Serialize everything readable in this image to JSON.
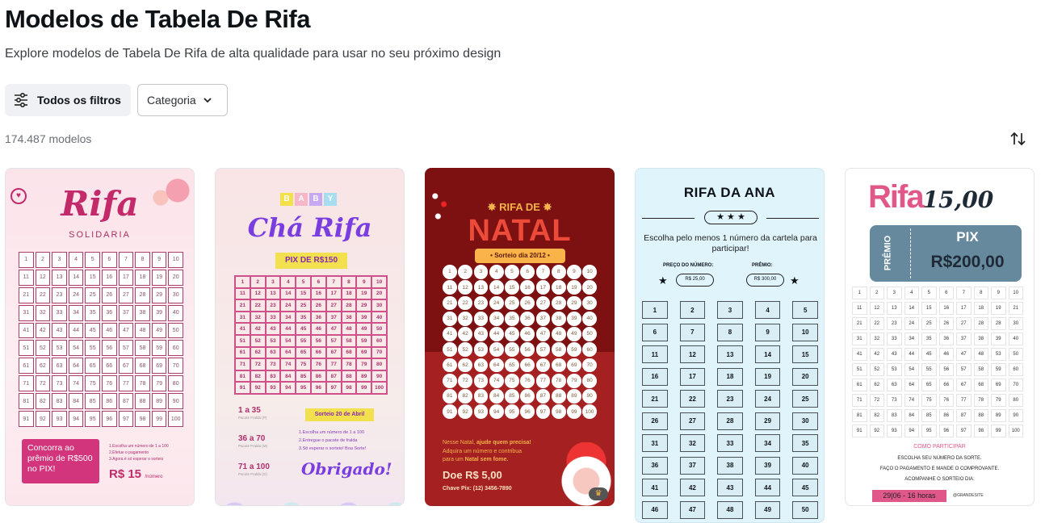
{
  "header": {
    "title": "Modelos de Tabela De Rifa",
    "subtitle": "Explore modelos de Tabela De Rifa de alta qualidade para usar no seu próximo design"
  },
  "filters": {
    "all_filters_label": "Todos os filtros",
    "category_label": "Categoria",
    "filters_icon": "sliders-icon",
    "category_icon": "chevron-down-icon"
  },
  "results": {
    "count": "174.487 modelos",
    "sort_icon": "sort-arrows-icon"
  },
  "colors": {
    "card1_pink": "#d3357c",
    "card3_dark": "#7d1010",
    "card3_red": "#a52121",
    "card4_bg": "#e0f4fb",
    "card5_pink": "#e0588a",
    "card5_ticket": "#66899e"
  },
  "templates": [
    {
      "title": "Rifa",
      "subtitle": "SOLIDARIA",
      "prize_box": "Concorra ao prêmio de R$500 no PIX!",
      "steps": [
        "1.Escolha um número de 1 a 100",
        "2.Efetue o pagamento",
        "3.Agora é só esperar o sorteio"
      ],
      "price": "R$ 15",
      "price_unit": "/número",
      "numbers": [
        1,
        2,
        3,
        4,
        5,
        6,
        7,
        8,
        9,
        10,
        11,
        12,
        13,
        14,
        15,
        16,
        17,
        18,
        19,
        20,
        21,
        22,
        23,
        24,
        25,
        26,
        27,
        28,
        29,
        30,
        31,
        32,
        33,
        34,
        35,
        36,
        37,
        38,
        39,
        40,
        41,
        42,
        43,
        44,
        45,
        46,
        47,
        48,
        49,
        50,
        51,
        52,
        53,
        54,
        55,
        56,
        57,
        58,
        59,
        60,
        61,
        62,
        63,
        64,
        65,
        66,
        67,
        68,
        69,
        70,
        71,
        72,
        73,
        74,
        75,
        76,
        77,
        78,
        79,
        80,
        81,
        82,
        83,
        84,
        85,
        86,
        87,
        88,
        89,
        90,
        91,
        92,
        93,
        94,
        95,
        96,
        97,
        98,
        99,
        100
      ]
    },
    {
      "blocks": [
        "B",
        "A",
        "B",
        "Y"
      ],
      "title": "Chá Rifa",
      "pix": "PIX DE R$150",
      "ranges": [
        {
          "range": "1 a 35",
          "label": "Pacote Fralda (P)"
        },
        {
          "range": "36 a 70",
          "label": "Pacote Fralda (M)"
        },
        {
          "range": "71 a 100",
          "label": "Pacote Fralda (G)"
        }
      ],
      "draw": "Sorteio 20 de Abril",
      "steps": [
        "1.Escolha um número de 1 a 100",
        "2.Entregue o pacote de fralda",
        "3.Só esperar o sorteio! Boa Sorte!"
      ],
      "thanks": "Obrigado!",
      "numbers": [
        1,
        2,
        3,
        4,
        5,
        6,
        7,
        8,
        9,
        10,
        11,
        12,
        13,
        14,
        15,
        16,
        17,
        18,
        19,
        20,
        21,
        22,
        23,
        24,
        25,
        26,
        27,
        28,
        29,
        30,
        31,
        32,
        33,
        34,
        35,
        36,
        37,
        38,
        39,
        40,
        41,
        42,
        43,
        44,
        45,
        46,
        47,
        48,
        49,
        50,
        51,
        52,
        53,
        54,
        55,
        56,
        57,
        58,
        59,
        60,
        61,
        62,
        63,
        64,
        65,
        66,
        67,
        68,
        69,
        70,
        71,
        72,
        73,
        74,
        75,
        76,
        77,
        78,
        79,
        80,
        81,
        82,
        83,
        84,
        85,
        86,
        87,
        88,
        89,
        90,
        91,
        92,
        93,
        94,
        95,
        96,
        97,
        98,
        99,
        100
      ]
    },
    {
      "kicker": "RIFA DE",
      "title": "NATAL",
      "draw": "Sorteio dia 20/12",
      "message_1": "Nesse Natal, ",
      "message_1b": "ajude quem precisa!",
      "message_2": "Adquira um número e contribua",
      "message_3": "para um ",
      "message_3b": "Natal sem fome.",
      "donation": "Doe R$ 5,00",
      "pix_key": "Chave Pix: (12) 3456-7890",
      "premium_icon": "crown-icon",
      "numbers": [
        1,
        2,
        3,
        4,
        5,
        6,
        7,
        8,
        9,
        10,
        11,
        12,
        13,
        14,
        15,
        16,
        17,
        18,
        19,
        20,
        21,
        22,
        23,
        24,
        25,
        26,
        27,
        28,
        29,
        30,
        31,
        32,
        33,
        34,
        35,
        36,
        37,
        38,
        39,
        40,
        41,
        42,
        43,
        44,
        45,
        46,
        47,
        48,
        49,
        50,
        51,
        52,
        53,
        54,
        55,
        56,
        57,
        58,
        59,
        60,
        61,
        62,
        63,
        64,
        65,
        66,
        67,
        68,
        69,
        70,
        71,
        72,
        73,
        74,
        75,
        76,
        77,
        78,
        79,
        80,
        81,
        82,
        83,
        84,
        85,
        86,
        87,
        88,
        89,
        90,
        91,
        92,
        93,
        94,
        95,
        96,
        97,
        98,
        99,
        100
      ]
    },
    {
      "title": "RIFA DA ANA",
      "stars": "★ ★ ★",
      "instruction": "Escolha pelo menos 1 número da cartela para participar!",
      "price_label": "PREÇO DO NÚMERO:",
      "price": "R$ 25,00",
      "prize_label": "PRÊMIO:",
      "prize": "R$ 300,00",
      "numbers": [
        1,
        2,
        3,
        4,
        5,
        6,
        7,
        8,
        9,
        10,
        11,
        12,
        13,
        14,
        15,
        16,
        17,
        18,
        19,
        20,
        21,
        22,
        23,
        24,
        25,
        26,
        27,
        28,
        29,
        30,
        31,
        32,
        33,
        34,
        35,
        36,
        37,
        38,
        39,
        40,
        41,
        42,
        43,
        44,
        45,
        46,
        47,
        48,
        49,
        50
      ]
    },
    {
      "title": "Rifa",
      "price": "15,00",
      "ticket_side": "PRÊMIO",
      "ticket_top": "PIX",
      "ticket_value": "R$200,00",
      "how_title": "COMO PARTICIPAR",
      "how_lines": [
        "ESCOLHA SEU NÚMERO DA SORTE.",
        "FAÇO O PAGAMENTO E MANDE O COMPROVANTE.",
        "ACOMPANHE O SORTEIO DIA:"
      ],
      "date": "29|06 - 16 horas",
      "handle": "@GRANDESITE",
      "numbers": [
        1,
        2,
        3,
        4,
        5,
        6,
        7,
        8,
        9,
        10,
        11,
        12,
        13,
        14,
        15,
        16,
        17,
        18,
        19,
        21,
        21,
        22,
        23,
        24,
        25,
        26,
        27,
        28,
        28,
        30,
        31,
        32,
        33,
        34,
        35,
        36,
        37,
        38,
        39,
        40,
        41,
        42,
        43,
        44,
        45,
        46,
        47,
        48,
        53,
        50,
        51,
        52,
        53,
        54,
        55,
        56,
        57,
        58,
        59,
        60,
        61,
        62,
        63,
        64,
        65,
        66,
        67,
        68,
        69,
        70,
        71,
        72,
        73,
        74,
        75,
        76,
        77,
        78,
        79,
        80,
        81,
        82,
        83,
        84,
        85,
        86,
        87,
        88,
        89,
        90,
        91,
        92,
        93,
        94,
        95,
        96,
        97,
        98,
        99,
        100
      ]
    }
  ]
}
